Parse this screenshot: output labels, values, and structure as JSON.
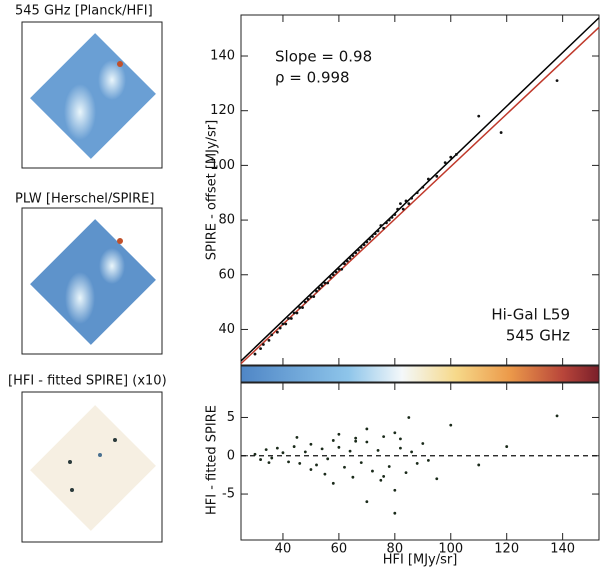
{
  "panels": [
    {
      "title": "545 GHz [Planck/HFI]"
    },
    {
      "title": "PLW [Herschel/SPIRE]"
    },
    {
      "title": "[HFI - fitted SPIRE] (x10)"
    }
  ],
  "chart_data": [
    {
      "type": "scatter",
      "ylabel": "SPIRE - offset [MJy/sr]",
      "annotations": [
        "Slope =  0.98",
        "ρ = 0.998",
        "Hi-Gal L59",
        "545 GHz"
      ],
      "xlim": [
        25,
        153
      ],
      "ylim": [
        27,
        155
      ],
      "xticks": [
        40,
        60,
        80,
        100,
        120,
        140
      ],
      "yticks": [
        40,
        60,
        80,
        100,
        120,
        140
      ],
      "color": "#111111",
      "x": [
        30,
        32,
        33,
        35,
        36,
        38,
        39,
        40,
        41,
        42,
        43,
        44,
        45,
        46,
        47,
        48,
        49,
        50,
        51,
        52,
        53,
        54,
        55,
        56,
        57,
        58,
        59,
        60,
        61,
        62,
        63,
        64,
        65,
        66,
        67,
        68,
        69,
        70,
        71,
        72,
        73,
        74,
        75,
        76,
        77,
        78,
        79,
        80,
        81,
        82,
        83,
        84,
        85,
        86,
        88,
        90,
        92,
        95,
        98,
        100,
        102,
        110,
        118,
        138
      ],
      "y": [
        31,
        33,
        34.5,
        36,
        38,
        39,
        40.5,
        42,
        42,
        44,
        44,
        46,
        46,
        48,
        48,
        50,
        51,
        52,
        52,
        54,
        55,
        56,
        57,
        57,
        59,
        60,
        61,
        62,
        62,
        64,
        65,
        66,
        67,
        68,
        69,
        70,
        71,
        72,
        73,
        74,
        75,
        76,
        78,
        77,
        79,
        80,
        81,
        82,
        84,
        86,
        84,
        87,
        86,
        88,
        90,
        92,
        95,
        96,
        101,
        103,
        104,
        118,
        112,
        131
      ],
      "lines": [
        {
          "color": "#000000",
          "x": [
            25,
            153
          ],
          "y": [
            28.5,
            154
          ]
        },
        {
          "color": "#c0392b",
          "x": [
            25,
            153
          ],
          "y": [
            27.5,
            150.5
          ]
        }
      ]
    },
    {
      "type": "scatter",
      "xlabel": "HFI [MJy/sr]",
      "ylabel": "HFI - fitted SPIRE",
      "xlim": [
        25,
        153
      ],
      "ylim": [
        -11,
        9.5
      ],
      "xticks": [
        40,
        60,
        80,
        100,
        120,
        140
      ],
      "yticks": [
        -5,
        0,
        5
      ],
      "reference_line": 0,
      "color": "#1a2a1a",
      "x": [
        30,
        32,
        34,
        36,
        38,
        40,
        42,
        44,
        46,
        48,
        50,
        52,
        54,
        56,
        58,
        60,
        62,
        64,
        66,
        68,
        70,
        72,
        74,
        76,
        78,
        80,
        82,
        84,
        86,
        88,
        35,
        45,
        55,
        65,
        75,
        85,
        50,
        60,
        70,
        80,
        90,
        95,
        100,
        120,
        138,
        70,
        80,
        58,
        66,
        76,
        82,
        92,
        110
      ],
      "y": [
        0.2,
        -0.5,
        0.8,
        -0.3,
        1.0,
        0.4,
        -0.8,
        1.2,
        -1.0,
        0.5,
        1.5,
        -1.2,
        0.9,
        -0.4,
        2.0,
        1.1,
        -1.5,
        0.6,
        2.3,
        -0.9,
        1.8,
        -2.0,
        0.7,
        2.5,
        -1.4,
        3.0,
        1.0,
        -2.2,
        0.5,
        -1.0,
        -0.9,
        2.4,
        -2.4,
        -2.8,
        -3.2,
        5.0,
        -1.8,
        2.8,
        -6.0,
        -7.5,
        1.6,
        -3.0,
        4.0,
        1.2,
        5.2,
        3.5,
        -4.5,
        -3.6,
        1.9,
        -2.7,
        2.2,
        -0.6,
        -1.2
      ]
    }
  ]
}
